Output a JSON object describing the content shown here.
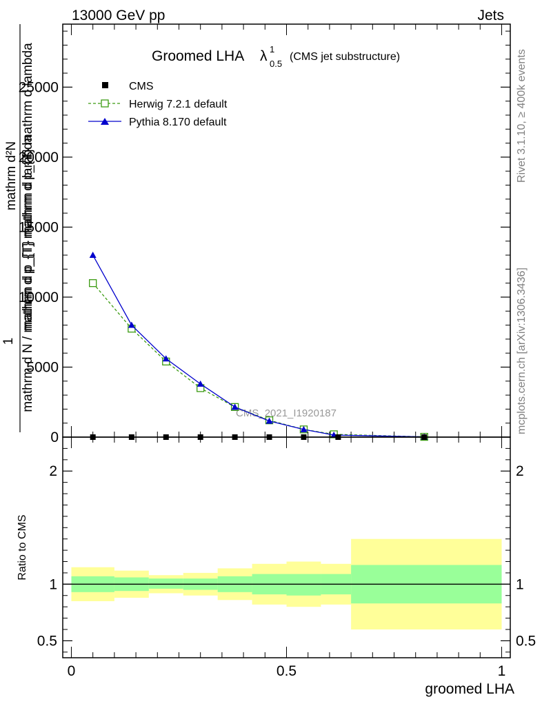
{
  "header": {
    "energy_label": "13000 GeV pp",
    "category_label": "Jets"
  },
  "side_labels": {
    "rivet": "Rivet 3.1.10, ≥ 400k events",
    "mcplots": "mcplots.cern.ch [arXiv:1306.3436]"
  },
  "colors": {
    "cms": "#000000",
    "herwig": "#3a9a10",
    "pythia": "#0000cc",
    "band_inner": "#99ff99",
    "band_outer": "#ffff99",
    "watermark": "#999999"
  },
  "chart_data": [
    {
      "type": "line",
      "title_main": "Groomed LHA",
      "title_symbol": "λ",
      "title_sup": "1",
      "title_sub": "0.5",
      "title_suffix": "(CMS jet substructure)",
      "ylabel_num_1": "1",
      "ylabel_num_2": "mathrm d",
      "ylabel_num_3": "N",
      "ylabel_den": "mathrm d N / mathrm d p_{T} mathrm d p_{T} mathrm d lambda",
      "ylabel_top": "mathrm d²N",
      "ylabel_mid": "mathrm d p_{T} mathrm d lambda",
      "watermark": "CMS_2021_I1920187",
      "xlim": [
        -0.02,
        1.02
      ],
      "ylim": [
        0,
        29500
      ],
      "yticks": [
        0,
        5000,
        10000,
        15000,
        20000,
        25000
      ],
      "ytick_labels": [
        "0",
        "5000",
        "10000",
        "15000",
        "20000",
        "25000"
      ],
      "legend": [
        "CMS",
        "Herwig 7.2.1 default",
        "Pythia 8.170 default"
      ],
      "series": [
        {
          "name": "CMS",
          "x": [
            0.05,
            0.14,
            0.22,
            0.3,
            0.38,
            0.46,
            0.54,
            0.62,
            0.82
          ],
          "y": [
            0,
            0,
            0,
            0,
            0,
            0,
            0,
            0,
            0
          ]
        },
        {
          "name": "Herwig 7.2.1 default",
          "x": [
            0.05,
            0.14,
            0.22,
            0.3,
            0.38,
            0.46,
            0.54,
            0.61,
            0.82
          ],
          "y": [
            11000,
            7750,
            5400,
            3500,
            2150,
            1200,
            550,
            200,
            20
          ]
        },
        {
          "name": "Pythia 8.170 default",
          "x": [
            0.05,
            0.14,
            0.22,
            0.3,
            0.38,
            0.46,
            0.54,
            0.61,
            0.82
          ],
          "y": [
            13000,
            8000,
            5600,
            3800,
            2150,
            1150,
            550,
            150,
            15
          ]
        }
      ]
    },
    {
      "type": "area",
      "ylabel": "Ratio to CMS",
      "xlabel": "groomed LHA",
      "xlim": [
        -0.02,
        1.02
      ],
      "ylim": [
        0.35,
        2.3
      ],
      "yticks": [
        0.5,
        1,
        2
      ],
      "ytick_labels": [
        "0.5",
        "1",
        "2"
      ],
      "xticks": [
        0,
        0.5,
        1
      ],
      "xtick_labels": [
        "0",
        "0.5",
        "1"
      ],
      "bins": [
        0,
        0.1,
        0.18,
        0.26,
        0.34,
        0.42,
        0.5,
        0.58,
        0.65,
        1.0
      ],
      "inner_band": {
        "low": [
          0.93,
          0.94,
          0.96,
          0.95,
          0.93,
          0.91,
          0.9,
          0.91,
          0.83
        ],
        "high": [
          1.07,
          1.06,
          1.05,
          1.05,
          1.07,
          1.09,
          1.09,
          1.09,
          1.17
        ]
      },
      "outer_band": {
        "low": [
          0.85,
          0.88,
          0.92,
          0.9,
          0.86,
          0.82,
          0.8,
          0.82,
          0.6
        ],
        "high": [
          1.15,
          1.12,
          1.08,
          1.1,
          1.14,
          1.18,
          1.2,
          1.18,
          1.4
        ]
      },
      "reference_line": 1
    }
  ]
}
